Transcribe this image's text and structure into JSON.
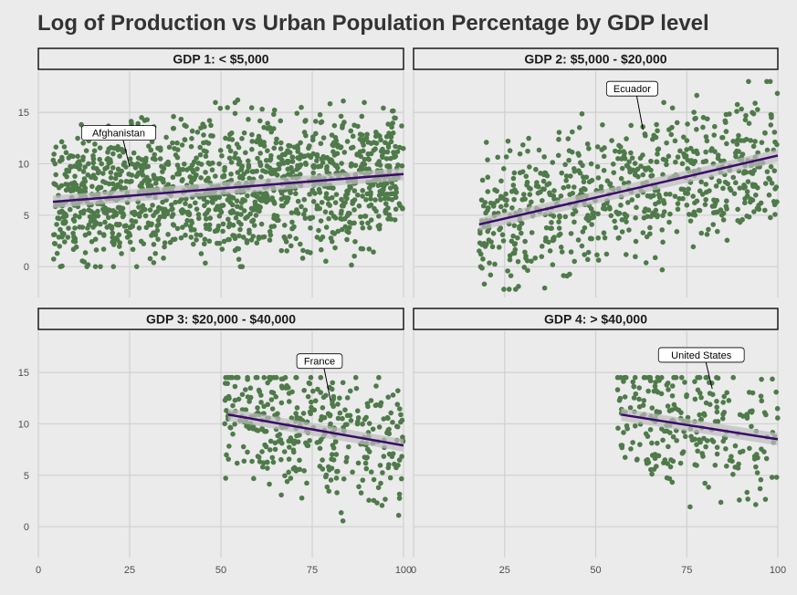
{
  "chart_data": {
    "type": "scatter",
    "title": "Log of Production vs Urban Population Percentage by GDP level",
    "xlabel": "",
    "ylabel": "",
    "xlim": [
      0,
      100
    ],
    "ylim": [
      -3,
      19
    ],
    "x_ticks": [
      "0",
      "25",
      "50",
      "75",
      "100"
    ],
    "y_ticks": [
      "0",
      "5",
      "10",
      "15"
    ],
    "point_color": "#4f7a4a",
    "line_color": "#3b0a6b",
    "ribbon_color": "#bdbdbd",
    "panels": [
      {
        "label": "GDP 1: < $5,000",
        "fit": {
          "x": [
            4,
            100
          ],
          "y": [
            6.3,
            9.0
          ]
        },
        "annotation": {
          "text": "Afghanistan",
          "label_x": 22,
          "label_y": 13.0,
          "point_x": 25,
          "point_y": 9.7
        },
        "cloud": {
          "x_range": [
            4,
            100
          ],
          "y_min": 0,
          "y_max": 17.5
        }
      },
      {
        "label": "GDP 2: $5,000 - $20,000",
        "fit": {
          "x": [
            18,
            100
          ],
          "y": [
            4.1,
            10.8
          ]
        },
        "annotation": {
          "text": "Ecuador",
          "label_x": 60,
          "label_y": 17.3,
          "point_x": 63,
          "point_y": 13.3
        },
        "cloud": {
          "x_range": [
            18,
            100
          ],
          "y_min": -2.2,
          "y_max": 18
        }
      },
      {
        "label": "GDP 3: $20,000 - $40,000",
        "fit": {
          "x": [
            52,
            100
          ],
          "y": [
            10.9,
            7.9
          ]
        },
        "annotation": {
          "text": "France",
          "label_x": 77,
          "label_y": 16.1,
          "point_x": 80,
          "point_y": 12.3
        },
        "cloud": {
          "x_range": [
            51,
            100
          ],
          "y_min": 0,
          "y_max": 14.5
        }
      },
      {
        "label": "GDP 4: > $40,000",
        "fit": {
          "x": [
            57,
            100
          ],
          "y": [
            10.9,
            8.5
          ]
        },
        "annotation": {
          "text": "United States",
          "label_x": 79,
          "label_y": 16.7,
          "point_x": 82,
          "point_y": 13.4
        },
        "cloud": {
          "x_range": [
            56,
            100
          ],
          "y_min": 0,
          "y_max": 14.5
        }
      }
    ]
  }
}
